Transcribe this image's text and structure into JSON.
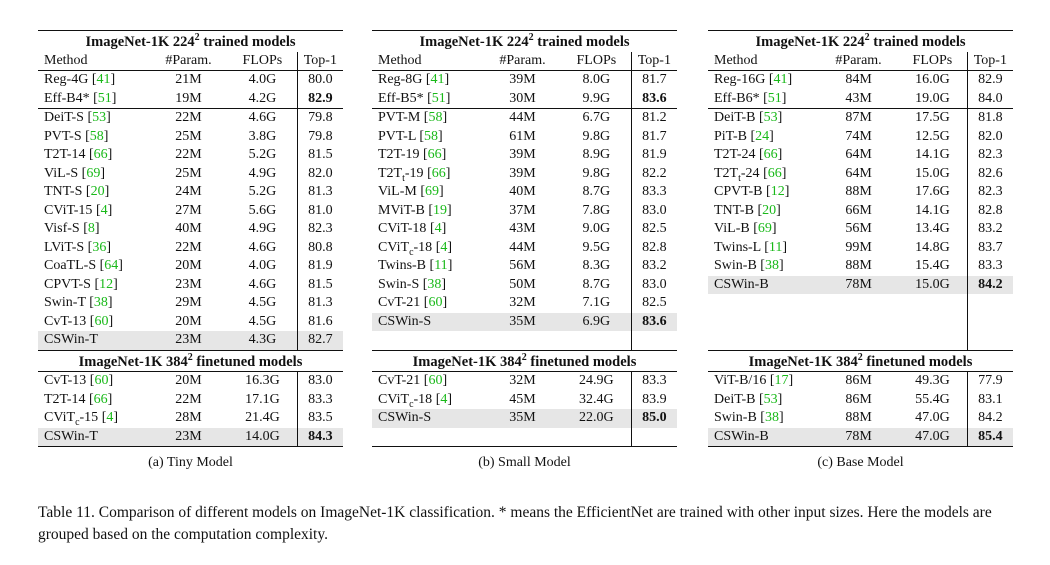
{
  "panels": [
    {
      "caption": "(a) Tiny Model",
      "section1_title": "ImageNet-1K 224",
      "section2_title": "ImageNet-1K 384",
      "sup": "2",
      "section1_suffix": " trained models",
      "section2_suffix": " finetuned models",
      "headers": [
        "Method",
        "#Param.",
        "FLOPs",
        "Top-1"
      ],
      "groups224": [
        [
          {
            "name": "Reg-4G",
            "ref": "41",
            "params": "21M",
            "flops": "4.0G",
            "top1": "80.0"
          },
          {
            "name": "Eff-B4*",
            "ref": "51",
            "params": "19M",
            "flops": "4.2G",
            "top1": "82.9",
            "bold": true
          }
        ],
        [
          {
            "name": "DeiT-S",
            "ref": "53",
            "params": "22M",
            "flops": "4.6G",
            "top1": "79.8"
          },
          {
            "name": "PVT-S",
            "ref": "58",
            "params": "25M",
            "flops": "3.8G",
            "top1": "79.8"
          },
          {
            "name": "T2T-14",
            "ref": "66",
            "params": "22M",
            "flops": "5.2G",
            "top1": "81.5"
          },
          {
            "name": "ViL-S",
            "ref": "69",
            "params": "25M",
            "flops": "4.9G",
            "top1": "82.0"
          },
          {
            "name": "TNT-S",
            "ref": "20",
            "params": "24M",
            "flops": "5.2G",
            "top1": "81.3"
          },
          {
            "name": "CViT-15",
            "ref": "4",
            "params": "27M",
            "flops": "5.6G",
            "top1": "81.0"
          },
          {
            "name": "Visf-S",
            "ref": "8",
            "params": "40M",
            "flops": "4.9G",
            "top1": "82.3"
          },
          {
            "name": "LViT-S",
            "ref": "36",
            "params": "22M",
            "flops": "4.6G",
            "top1": "80.8"
          },
          {
            "name": "CoaTL-S",
            "ref": "64",
            "params": "20M",
            "flops": "4.0G",
            "top1": "81.9"
          },
          {
            "name": "CPVT-S",
            "ref": "12",
            "params": "23M",
            "flops": "4.6G",
            "top1": "81.5"
          },
          {
            "name": "Swin-T",
            "ref": "38",
            "params": "29M",
            "flops": "4.5G",
            "top1": "81.3"
          },
          {
            "name": "CvT-13",
            "ref": "60",
            "params": "20M",
            "flops": "4.5G",
            "top1": "81.6"
          }
        ]
      ],
      "ours224": {
        "name": "CSWin-T",
        "params": "23M",
        "flops": "4.3G",
        "top1": "82.7",
        "bold": false
      },
      "fillers224": 0,
      "rows384": [
        {
          "name": "CvT-13 ",
          "ref": "60",
          "params": "20M",
          "flops": "16.3G",
          "top1": "83.0"
        },
        {
          "name": "T2T-14",
          "ref": "66",
          "params": "22M",
          "flops": "17.1G",
          "top1": "83.3"
        },
        {
          "name": "CViT",
          "sub": "c",
          "tail": "-15",
          "ref": "4",
          "params": "28M",
          "flops": "21.4G",
          "top1": "83.5"
        }
      ],
      "ours384": {
        "name": "CSWin-T",
        "params": "23M",
        "flops": "14.0G",
        "top1": "84.3",
        "bold": true
      },
      "fillers384": 0
    },
    {
      "caption": "(b) Small Model",
      "section1_title": "ImageNet-1K 224",
      "section2_title": "ImageNet-1K 384",
      "sup": "2",
      "section1_suffix": " trained models",
      "section2_suffix": " finetuned models",
      "headers": [
        "Method",
        "#Param.",
        "FLOPs",
        "Top-1"
      ],
      "groups224": [
        [
          {
            "name": "Reg-8G",
            "ref": "41",
            "params": "39M",
            "flops": "8.0G",
            "top1": "81.7"
          },
          {
            "name": "Eff-B5*",
            "ref": "51",
            "params": "30M",
            "flops": "9.9G",
            "top1": "83.6",
            "bold": true
          }
        ],
        [
          {
            "name": "PVT-M",
            "ref": "58",
            "params": "44M",
            "flops": "6.7G",
            "top1": "81.2"
          },
          {
            "name": "PVT-L",
            "ref": "58",
            "params": "61M",
            "flops": "9.8G",
            "top1": "81.7"
          },
          {
            "name": "T2T-19",
            "ref": "66",
            "params": "39M",
            "flops": "8.9G",
            "top1": "81.9"
          },
          {
            "name": "T2T",
            "sub": "t",
            "tail": "-19",
            "ref": "66",
            "params": "39M",
            "flops": "9.8G",
            "top1": "82.2"
          },
          {
            "name": "ViL-M",
            "ref": "69",
            "params": "40M",
            "flops": "8.7G",
            "top1": "83.3"
          },
          {
            "name": "MViT-B",
            "ref": "19",
            "params": "37M",
            "flops": "7.8G",
            "top1": "83.0"
          },
          {
            "name": "CViT-18",
            "ref": "4",
            "params": "43M",
            "flops": "9.0G",
            "top1": "82.5"
          },
          {
            "name": "CViT",
            "sub": "c",
            "tail": "-18",
            "ref": "4",
            "params": "44M",
            "flops": "9.5G",
            "top1": "82.8"
          },
          {
            "name": "Twins-B",
            "ref": "11",
            "params": "56M",
            "flops": "8.3G",
            "top1": "83.2"
          },
          {
            "name": "Swin-S",
            "ref": "38",
            "params": "50M",
            "flops": "8.7G",
            "top1": "83.0"
          },
          {
            "name": "CvT-21",
            "ref": "60",
            "params": "32M",
            "flops": "7.1G",
            "top1": "82.5"
          }
        ]
      ],
      "ours224": {
        "name": "CSWin-S",
        "params": "35M",
        "flops": "6.9G",
        "top1": "83.6",
        "bold": true
      },
      "fillers224": 1,
      "rows384": [
        {
          "name": "CvT-21",
          "ref": "60",
          "params": "32M",
          "flops": "24.9G",
          "top1": "83.3"
        },
        {
          "name": "CViT",
          "sub": "c",
          "tail": "-18",
          "ref": "4",
          "params": "45M",
          "flops": "32.4G",
          "top1": "83.9"
        }
      ],
      "ours384": {
        "name": "CSWin-S",
        "params": "35M",
        "flops": "22.0G",
        "top1": "85.0",
        "bold": true
      },
      "fillers384": 1
    },
    {
      "caption": "(c) Base Model",
      "section1_title": "ImageNet-1K 224",
      "section2_title": "ImageNet-1K 384",
      "sup": "2",
      "section1_suffix": " trained models",
      "section2_suffix": " finetuned models",
      "headers": [
        "Method",
        "#Param.",
        "FLOPs",
        "Top-1"
      ],
      "groups224": [
        [
          {
            "name": "Reg-16G",
            "ref": "41",
            "params": "84M",
            "flops": "16.0G",
            "top1": "82.9"
          },
          {
            "name": "Eff-B6*",
            "ref": "51",
            "params": "43M",
            "flops": "19.0G",
            "top1": "84.0"
          }
        ],
        [
          {
            "name": "DeiT-B",
            "ref": "53",
            "params": "87M",
            "flops": "17.5G",
            "top1": "81.8"
          },
          {
            "name": "PiT-B",
            "ref": "24",
            "params": "74M",
            "flops": "12.5G",
            "top1": "82.0"
          },
          {
            "name": "T2T-24",
            "ref": "66",
            "params": "64M",
            "flops": "14.1G",
            "top1": "82.3"
          },
          {
            "name": "T2T",
            "sub": "t",
            "tail": "-24",
            "ref": "66",
            "params": "64M",
            "flops": "15.0G",
            "top1": "82.6"
          },
          {
            "name": "CPVT-B",
            "ref": "12",
            "params": "88M",
            "flops": "17.6G",
            "top1": "82.3"
          },
          {
            "name": "TNT-B",
            "ref": "20",
            "params": "66M",
            "flops": "14.1G",
            "top1": "82.8"
          },
          {
            "name": "ViL-B",
            "ref": "69",
            "params": "56M",
            "flops": "13.4G",
            "top1": "83.2"
          },
          {
            "name": "Twins-L",
            "ref": "11",
            "params": "99M",
            "flops": "14.8G",
            "top1": "83.7"
          },
          {
            "name": "Swin-B",
            "ref": "38",
            "params": "88M",
            "flops": "15.4G",
            "top1": "83.3"
          }
        ]
      ],
      "ours224": {
        "name": "CSWin-B",
        "params": "78M",
        "flops": "15.0G",
        "top1": "84.2",
        "bold": true
      },
      "fillers224": 3,
      "rows384": [
        {
          "name": "ViT-B/16",
          "ref": "17",
          "params": "86M",
          "flops": "49.3G",
          "top1": "77.9"
        },
        {
          "name": "DeiT-B",
          "ref": "53",
          "params": "86M",
          "flops": "55.4G",
          "top1": "83.1"
        },
        {
          "name": "Swin-B",
          "ref": "38",
          "params": "88M",
          "flops": "47.0G",
          "top1": "84.2"
        }
      ],
      "ours384": {
        "name": "CSWin-B",
        "params": "78M",
        "flops": "47.0G",
        "top1": "85.4",
        "bold": true
      },
      "fillers384": 0
    }
  ],
  "main_caption": "Table 11. Comparison of different models on ImageNet-1K classification. * means the EfficientNet are trained with other input sizes. Here the models are grouped based on the computation complexity."
}
